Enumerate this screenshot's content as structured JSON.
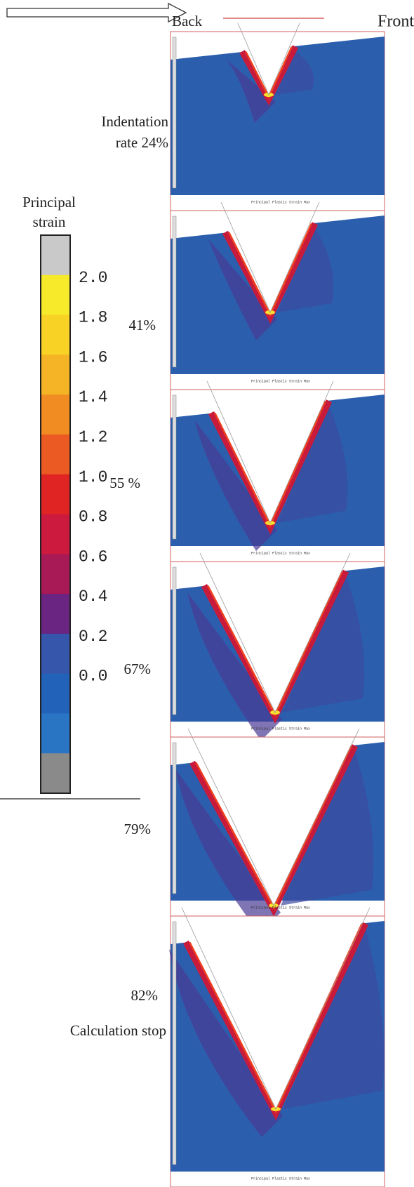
{
  "header": {
    "back": "Back",
    "front": "Front"
  },
  "legend": {
    "title": [
      "Principal",
      "strain"
    ],
    "labels": [
      "2.0",
      "1.8",
      "1.6",
      "1.4",
      "1.2",
      "1.0",
      "0.8",
      "0.6",
      "0.4",
      "0.2",
      "0.0"
    ],
    "colors": [
      "#c9c9c9",
      "#f7ea2a",
      "#f8d224",
      "#f5b425",
      "#f08c22",
      "#ea5a22",
      "#e02424",
      "#cc1a3e",
      "#a81a55",
      "#6a2482",
      "#3556aa",
      "#2262b8",
      "#2a74c4",
      "#8a8a8a"
    ]
  },
  "panels": [
    {
      "label": [
        "Indentation",
        "rate 24%"
      ],
      "caption": "Principal Plastic Strain Max"
    },
    {
      "label": [
        "41%"
      ],
      "caption": "Principal Plastic Strain Max"
    },
    {
      "label": [
        "55 %"
      ],
      "caption": "Principal Plastic Strain Max"
    },
    {
      "label": [
        "67%"
      ],
      "caption": "Principal Plastic Strain Max"
    },
    {
      "label": [
        "79%"
      ],
      "caption": "Principal Plastic Strain Max"
    },
    {
      "label": [
        "82%",
        "Calculation stop"
      ],
      "caption": "Principal Plastic Strain Max"
    }
  ]
}
